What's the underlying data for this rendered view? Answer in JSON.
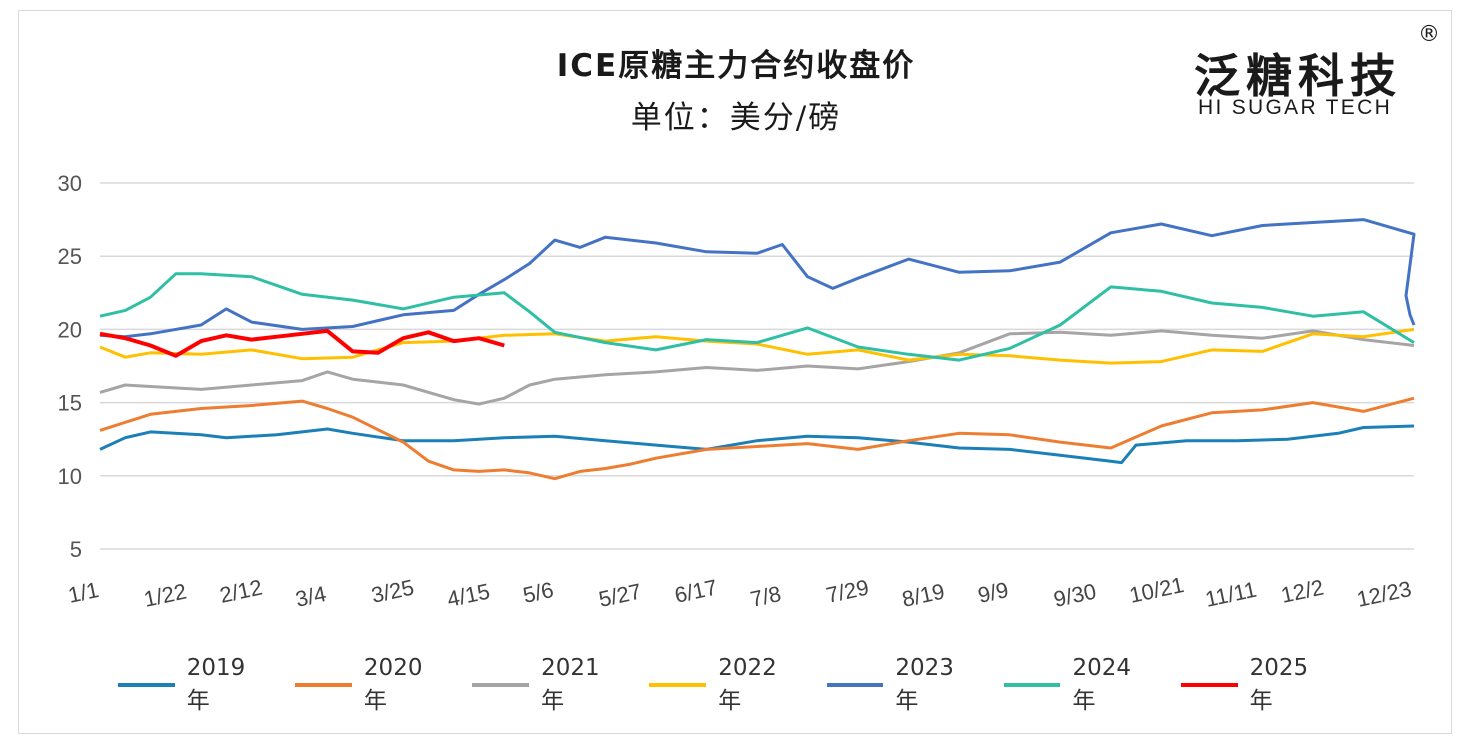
{
  "chart_data": {
    "type": "line",
    "title": "ICE原糖主力合约收盘价",
    "subtitle": "单位：美分/磅",
    "ylim": [
      5,
      30
    ],
    "yticks": [
      5,
      10,
      15,
      20,
      25,
      30
    ],
    "x_tick_labels": [
      "1/1",
      "1/22",
      "2/12",
      "3/4",
      "3/25",
      "4/15",
      "5/6",
      "5/27",
      "6/17",
      "7/8",
      "7/29",
      "8/19",
      "9/9",
      "9/30",
      "10/21",
      "11/11",
      "12/2",
      "12/23"
    ],
    "x_domain_days": [
      0,
      364
    ],
    "grid": "horizontal",
    "legend_position": "bottom",
    "series": [
      {
        "name": "2019年",
        "color": "#1b7fb8",
        "points": [
          [
            0,
            11.8
          ],
          [
            7,
            12.6
          ],
          [
            14,
            13.0
          ],
          [
            28,
            12.8
          ],
          [
            35,
            12.6
          ],
          [
            49,
            12.8
          ],
          [
            63,
            13.2
          ],
          [
            70,
            12.9
          ],
          [
            84,
            12.4
          ],
          [
            98,
            12.4
          ],
          [
            112,
            12.6
          ],
          [
            126,
            12.7
          ],
          [
            140,
            12.4
          ],
          [
            154,
            12.1
          ],
          [
            168,
            11.8
          ],
          [
            182,
            12.4
          ],
          [
            196,
            12.7
          ],
          [
            210,
            12.6
          ],
          [
            224,
            12.3
          ],
          [
            238,
            11.9
          ],
          [
            252,
            11.8
          ],
          [
            266,
            11.4
          ],
          [
            280,
            11.0
          ],
          [
            283,
            10.9
          ],
          [
            287,
            12.1
          ],
          [
            301,
            12.4
          ],
          [
            315,
            12.4
          ],
          [
            329,
            12.5
          ],
          [
            343,
            12.9
          ],
          [
            350,
            13.3
          ],
          [
            364,
            13.4
          ]
        ]
      },
      {
        "name": "2020年",
        "color": "#ed7d31",
        "points": [
          [
            0,
            13.1
          ],
          [
            14,
            14.2
          ],
          [
            28,
            14.6
          ],
          [
            42,
            14.8
          ],
          [
            56,
            15.1
          ],
          [
            63,
            14.6
          ],
          [
            70,
            14.0
          ],
          [
            84,
            12.3
          ],
          [
            91,
            11.0
          ],
          [
            98,
            10.4
          ],
          [
            105,
            10.3
          ],
          [
            112,
            10.4
          ],
          [
            119,
            10.2
          ],
          [
            126,
            9.8
          ],
          [
            133,
            10.3
          ],
          [
            140,
            10.5
          ],
          [
            147,
            10.8
          ],
          [
            154,
            11.2
          ],
          [
            168,
            11.8
          ],
          [
            182,
            12.0
          ],
          [
            196,
            12.2
          ],
          [
            210,
            11.8
          ],
          [
            224,
            12.4
          ],
          [
            238,
            12.9
          ],
          [
            252,
            12.8
          ],
          [
            266,
            12.3
          ],
          [
            280,
            11.9
          ],
          [
            294,
            13.4
          ],
          [
            308,
            14.3
          ],
          [
            322,
            14.5
          ],
          [
            336,
            15.0
          ],
          [
            350,
            14.4
          ],
          [
            364,
            15.3
          ]
        ]
      },
      {
        "name": "2021年",
        "color": "#a5a5a5",
        "points": [
          [
            0,
            15.7
          ],
          [
            7,
            16.2
          ],
          [
            14,
            16.1
          ],
          [
            28,
            15.9
          ],
          [
            42,
            16.2
          ],
          [
            56,
            16.5
          ],
          [
            63,
            17.1
          ],
          [
            70,
            16.6
          ],
          [
            84,
            16.2
          ],
          [
            98,
            15.2
          ],
          [
            105,
            14.9
          ],
          [
            112,
            15.3
          ],
          [
            119,
            16.2
          ],
          [
            126,
            16.6
          ],
          [
            140,
            16.9
          ],
          [
            154,
            17.1
          ],
          [
            168,
            17.4
          ],
          [
            182,
            17.2
          ],
          [
            196,
            17.5
          ],
          [
            210,
            17.3
          ],
          [
            224,
            17.8
          ],
          [
            238,
            18.4
          ],
          [
            252,
            19.7
          ],
          [
            266,
            19.8
          ],
          [
            280,
            19.6
          ],
          [
            294,
            19.9
          ],
          [
            308,
            19.6
          ],
          [
            322,
            19.4
          ],
          [
            336,
            19.9
          ],
          [
            350,
            19.3
          ],
          [
            364,
            18.9
          ]
        ]
      },
      {
        "name": "2022年",
        "color": "#ffc000",
        "points": [
          [
            0,
            18.8
          ],
          [
            7,
            18.1
          ],
          [
            14,
            18.4
          ],
          [
            28,
            18.3
          ],
          [
            42,
            18.6
          ],
          [
            56,
            18.0
          ],
          [
            70,
            18.1
          ],
          [
            84,
            19.1
          ],
          [
            98,
            19.2
          ],
          [
            112,
            19.6
          ],
          [
            126,
            19.7
          ],
          [
            140,
            19.2
          ],
          [
            154,
            19.5
          ],
          [
            168,
            19.2
          ],
          [
            182,
            19.0
          ],
          [
            196,
            18.3
          ],
          [
            210,
            18.6
          ],
          [
            224,
            17.9
          ],
          [
            238,
            18.3
          ],
          [
            252,
            18.2
          ],
          [
            266,
            17.9
          ],
          [
            280,
            17.7
          ],
          [
            294,
            17.8
          ],
          [
            308,
            18.6
          ],
          [
            322,
            18.5
          ],
          [
            336,
            19.7
          ],
          [
            350,
            19.5
          ],
          [
            364,
            20.0
          ]
        ]
      },
      {
        "name": "2023年",
        "color": "#4472c4",
        "points": [
          [
            0,
            19.6
          ],
          [
            7,
            19.5
          ],
          [
            14,
            19.7
          ],
          [
            28,
            20.3
          ],
          [
            35,
            21.4
          ],
          [
            42,
            20.5
          ],
          [
            56,
            20.0
          ],
          [
            70,
            20.2
          ],
          [
            84,
            21.0
          ],
          [
            98,
            21.3
          ],
          [
            105,
            22.4
          ],
          [
            112,
            23.4
          ],
          [
            119,
            24.5
          ],
          [
            126,
            26.1
          ],
          [
            133,
            25.6
          ],
          [
            140,
            26.3
          ],
          [
            154,
            25.9
          ],
          [
            168,
            25.3
          ],
          [
            182,
            25.2
          ],
          [
            189,
            25.8
          ],
          [
            196,
            23.6
          ],
          [
            203,
            22.8
          ],
          [
            210,
            23.5
          ],
          [
            224,
            24.8
          ],
          [
            238,
            23.9
          ],
          [
            252,
            24.0
          ],
          [
            266,
            24.6
          ],
          [
            280,
            26.6
          ],
          [
            294,
            27.2
          ],
          [
            308,
            26.4
          ],
          [
            322,
            27.1
          ],
          [
            336,
            27.3
          ],
          [
            350,
            27.5
          ],
          [
            364,
            26.5
          ],
          [
            371,
            22.3
          ],
          [
            385,
            21.0
          ],
          [
            392,
            20.3
          ]
        ]
      },
      {
        "name": "2024年",
        "color": "#2ebfa5",
        "points": [
          [
            0,
            20.9
          ],
          [
            7,
            21.3
          ],
          [
            14,
            22.2
          ],
          [
            21,
            23.8
          ],
          [
            28,
            23.8
          ],
          [
            42,
            23.6
          ],
          [
            56,
            22.4
          ],
          [
            70,
            22.0
          ],
          [
            84,
            21.4
          ],
          [
            98,
            22.2
          ],
          [
            112,
            22.5
          ],
          [
            119,
            21.2
          ],
          [
            126,
            19.8
          ],
          [
            140,
            19.1
          ],
          [
            154,
            18.6
          ],
          [
            168,
            19.3
          ],
          [
            182,
            19.1
          ],
          [
            196,
            20.1
          ],
          [
            210,
            18.8
          ],
          [
            224,
            18.3
          ],
          [
            238,
            17.9
          ],
          [
            252,
            18.7
          ],
          [
            266,
            20.3
          ],
          [
            280,
            22.9
          ],
          [
            294,
            22.6
          ],
          [
            308,
            21.8
          ],
          [
            322,
            21.5
          ],
          [
            336,
            20.9
          ],
          [
            350,
            21.2
          ],
          [
            364,
            19.1
          ]
        ]
      },
      {
        "name": "2025年",
        "color": "#ff0000",
        "points": [
          [
            0,
            19.7
          ],
          [
            7,
            19.4
          ],
          [
            14,
            18.9
          ],
          [
            21,
            18.2
          ],
          [
            28,
            19.2
          ],
          [
            35,
            19.6
          ],
          [
            42,
            19.3
          ],
          [
            49,
            19.5
          ],
          [
            56,
            19.7
          ],
          [
            63,
            19.9
          ],
          [
            70,
            18.5
          ],
          [
            77,
            18.4
          ],
          [
            84,
            19.4
          ],
          [
            91,
            19.8
          ],
          [
            98,
            19.2
          ],
          [
            105,
            19.4
          ],
          [
            112,
            18.9
          ]
        ]
      }
    ]
  },
  "logo": {
    "cn": "泛糖科技",
    "en": "HI SUGAR TECH",
    "reg": "®"
  }
}
